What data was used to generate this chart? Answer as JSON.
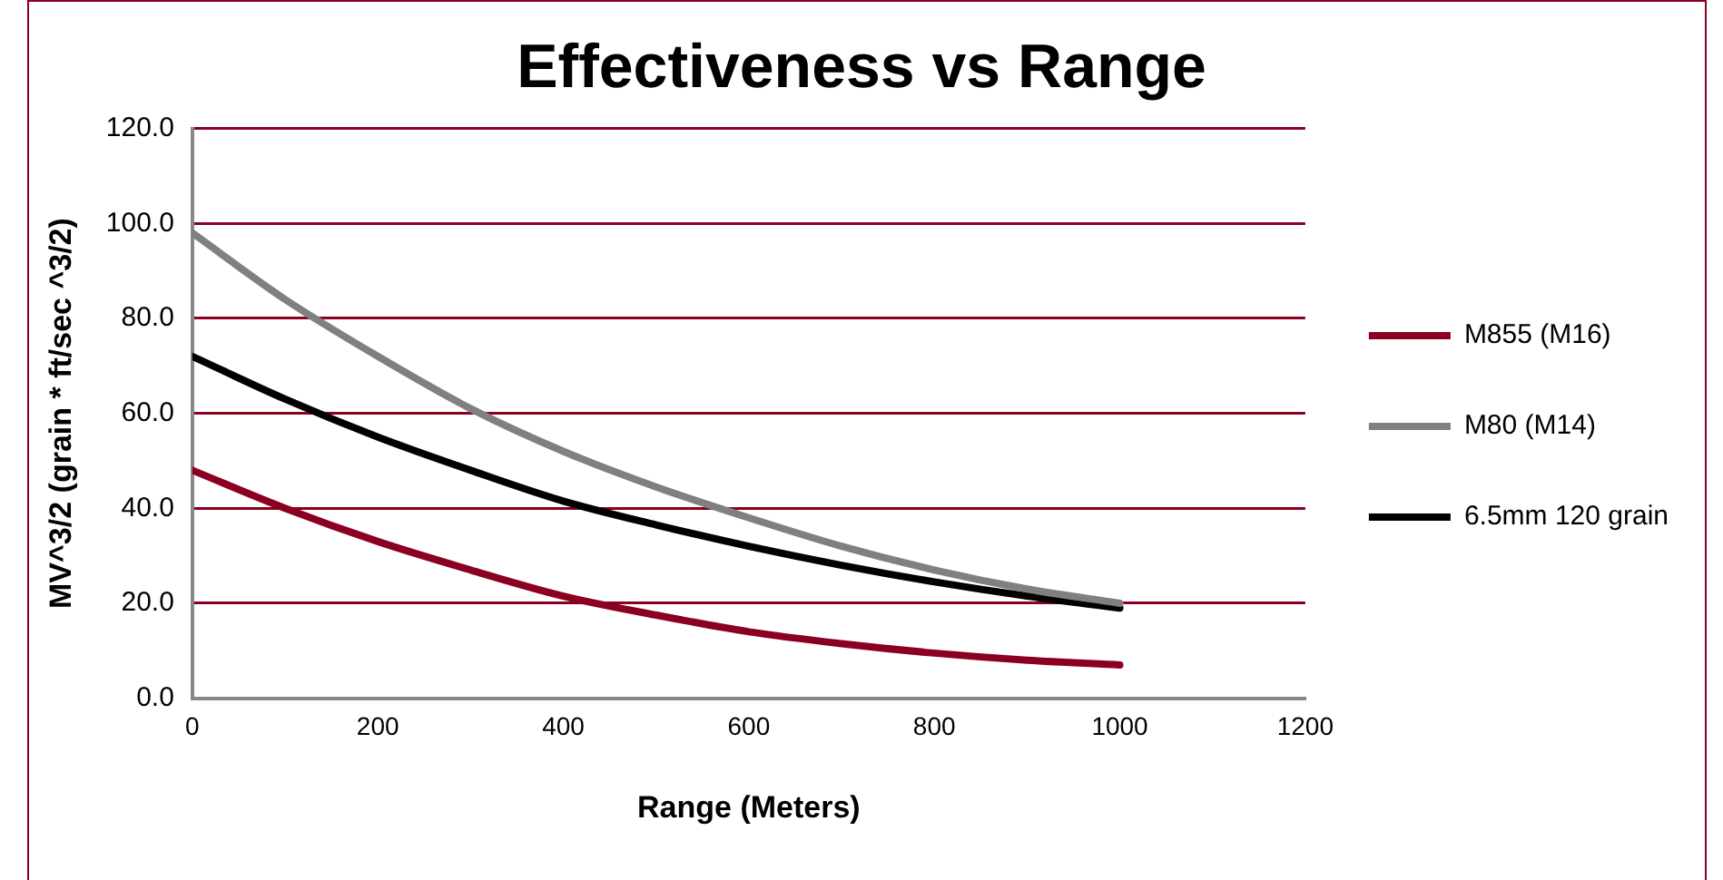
{
  "chart_data": {
    "type": "line",
    "title": "Effectiveness vs Range",
    "xlabel": "Range (Meters)",
    "ylabel": "MV^3/2 (grain * ft/sec ^3/2)",
    "x": [
      0,
      100,
      200,
      300,
      400,
      500,
      600,
      700,
      800,
      900,
      1000
    ],
    "series": [
      {
        "name": "M855 (M16)",
        "color": "#8b0020",
        "values": [
          48,
          40,
          33,
          27,
          21.5,
          17.5,
          14,
          11.5,
          9.5,
          8,
          7
        ]
      },
      {
        "name": "M80 (M14)",
        "color": "#808080",
        "values": [
          98,
          84,
          72,
          61,
          52,
          44.5,
          38,
          32,
          27,
          23,
          20
        ]
      },
      {
        "name": "6.5mm 120 grain",
        "color": "#000000",
        "values": [
          72,
          63,
          55,
          48,
          41.5,
          36.5,
          32,
          28,
          24.5,
          21.5,
          19
        ]
      }
    ],
    "xlim": [
      0,
      1200
    ],
    "xticks": [
      0,
      200,
      400,
      600,
      800,
      1000,
      1200
    ],
    "ylim": [
      0,
      120
    ],
    "yticks": [
      {
        "value": 0,
        "label": "0.0"
      },
      {
        "value": 20,
        "label": "20.0"
      },
      {
        "value": 40,
        "label": "40.0"
      },
      {
        "value": 60,
        "label": "60.0"
      },
      {
        "value": 80,
        "label": "80.0"
      },
      {
        "value": 100,
        "label": "100.0"
      },
      {
        "value": 120,
        "label": "120.0"
      }
    ],
    "grid": "y",
    "legend": "right",
    "marker": "none",
    "line_style": "solid"
  }
}
